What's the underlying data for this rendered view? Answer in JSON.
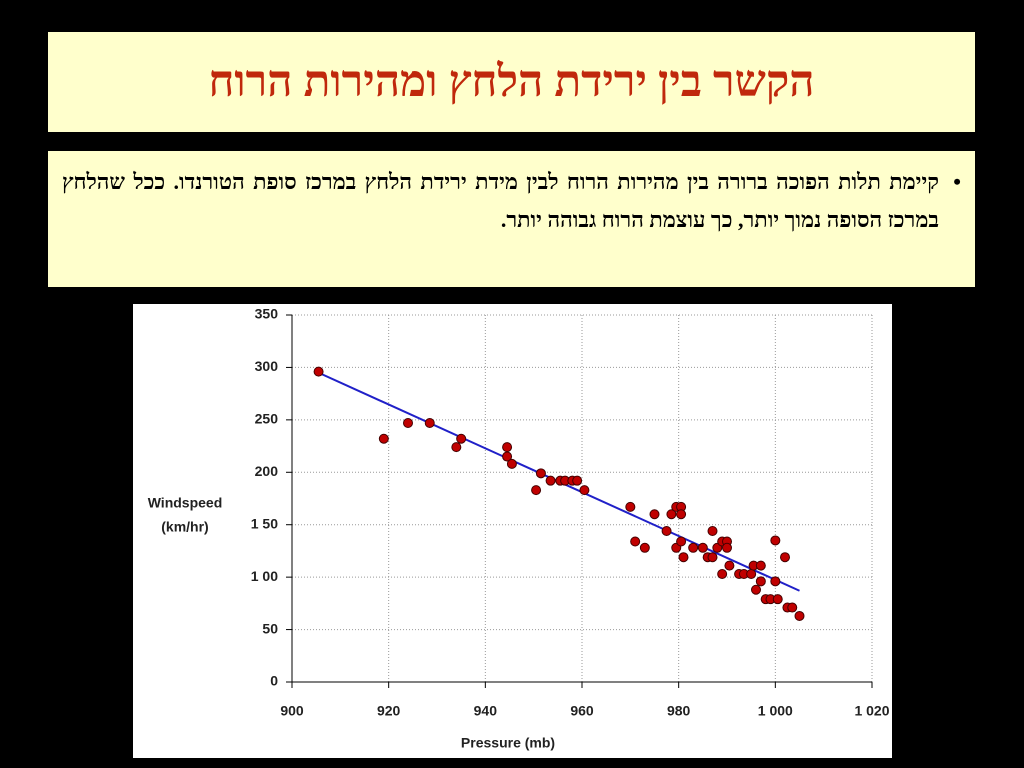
{
  "slide": {
    "title": "הקשר בין ירידת הלחץ ומהירות הרוח",
    "bullet": "קיימת תלות הפוכה ברורה בין מהירות הרוח לבין מידת ירידת הלחץ במרכז סופת הטורנדו. ככל שהלחץ במרכז הסופה נמוך יותר, כך עוצמת הרוח גבוהה יותר."
  },
  "chart_data": {
    "type": "scatter",
    "xlabel": "Pressure (mb)",
    "ylabel_lines": [
      "Windspeed",
      "(km/hr)"
    ],
    "xlim": [
      900,
      1020
    ],
    "xticks": [
      900,
      920,
      940,
      960,
      980,
      {
        "value": 1000,
        "label": "1 000"
      },
      {
        "value": 1020,
        "label": "1 020"
      }
    ],
    "ylim": [
      0,
      350
    ],
    "yticks": [
      0,
      50,
      {
        "value": 100,
        "label": "1 00"
      },
      {
        "value": 150,
        "label": "1 50"
      },
      200,
      250,
      300,
      350
    ],
    "grid": true,
    "color": "#c00000",
    "x": [
      905.5,
      919,
      924,
      928.5,
      934,
      935,
      944.5,
      944.5,
      945.5,
      950.5,
      951.5,
      953.5,
      955.5,
      956.5,
      958,
      959,
      960.5,
      970,
      971,
      973,
      975,
      977.5,
      978.5,
      979.5,
      980.5,
      980.5,
      979.5,
      980.5,
      981,
      983,
      985,
      986,
      987,
      987,
      988,
      989,
      989,
      990,
      990,
      990.5,
      992.5,
      993.5,
      995,
      995.5,
      996,
      997,
      997,
      998,
      999,
      1000,
      1000,
      1000.5,
      1002,
      1002.5,
      1003.5,
      1005
    ],
    "values": [
      296,
      232,
      247,
      247,
      224,
      232,
      224,
      215,
      208,
      183,
      199,
      192,
      192,
      192,
      192,
      192,
      183,
      167,
      134,
      128,
      160,
      144,
      160,
      167,
      167,
      160,
      128,
      134,
      119,
      128,
      128,
      119,
      144,
      119,
      128,
      103,
      134,
      134,
      128,
      111,
      103,
      103,
      103,
      111,
      88,
      111,
      96,
      79,
      79,
      135,
      96,
      79,
      119,
      71,
      71,
      63
    ],
    "trend_line": {
      "x": [
        905,
        1005
      ],
      "values": [
        296,
        87
      ],
      "color": "#2020c8"
    }
  }
}
